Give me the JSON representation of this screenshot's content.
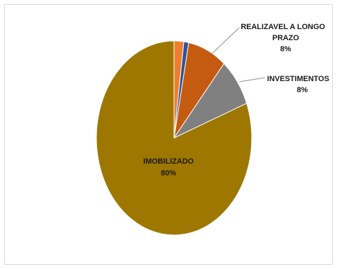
{
  "chart_data": {
    "type": "pie",
    "title": "",
    "slices": [
      {
        "label": "",
        "value": 2,
        "color": "#ed7d31"
      },
      {
        "label": "",
        "value": 1,
        "color": "#2e5597"
      },
      {
        "label": "REALIZAVEL A LONGO PRAZO",
        "value": 8,
        "color": "#c55a11",
        "pct_text": "8%"
      },
      {
        "label": "INVESTIMENTOS",
        "value": 8,
        "color": "#808080",
        "pct_text": "8%"
      },
      {
        "label": "IMOBILIZADO",
        "value": 80,
        "color": "#9e7700",
        "pct_text": "80%"
      }
    ],
    "labels": {
      "realizavel_line1": "REALIZAVEL A LONGO",
      "realizavel_line2": "PRAZO",
      "realizavel_pct": "8%",
      "investimentos": "INVESTIMENTOS",
      "investimentos_pct": "8%",
      "imobilizado": "IMOBILIZADO",
      "imobilizado_pct": "80%"
    },
    "legend": "none",
    "leader_line_color": "#8c8c8c"
  }
}
